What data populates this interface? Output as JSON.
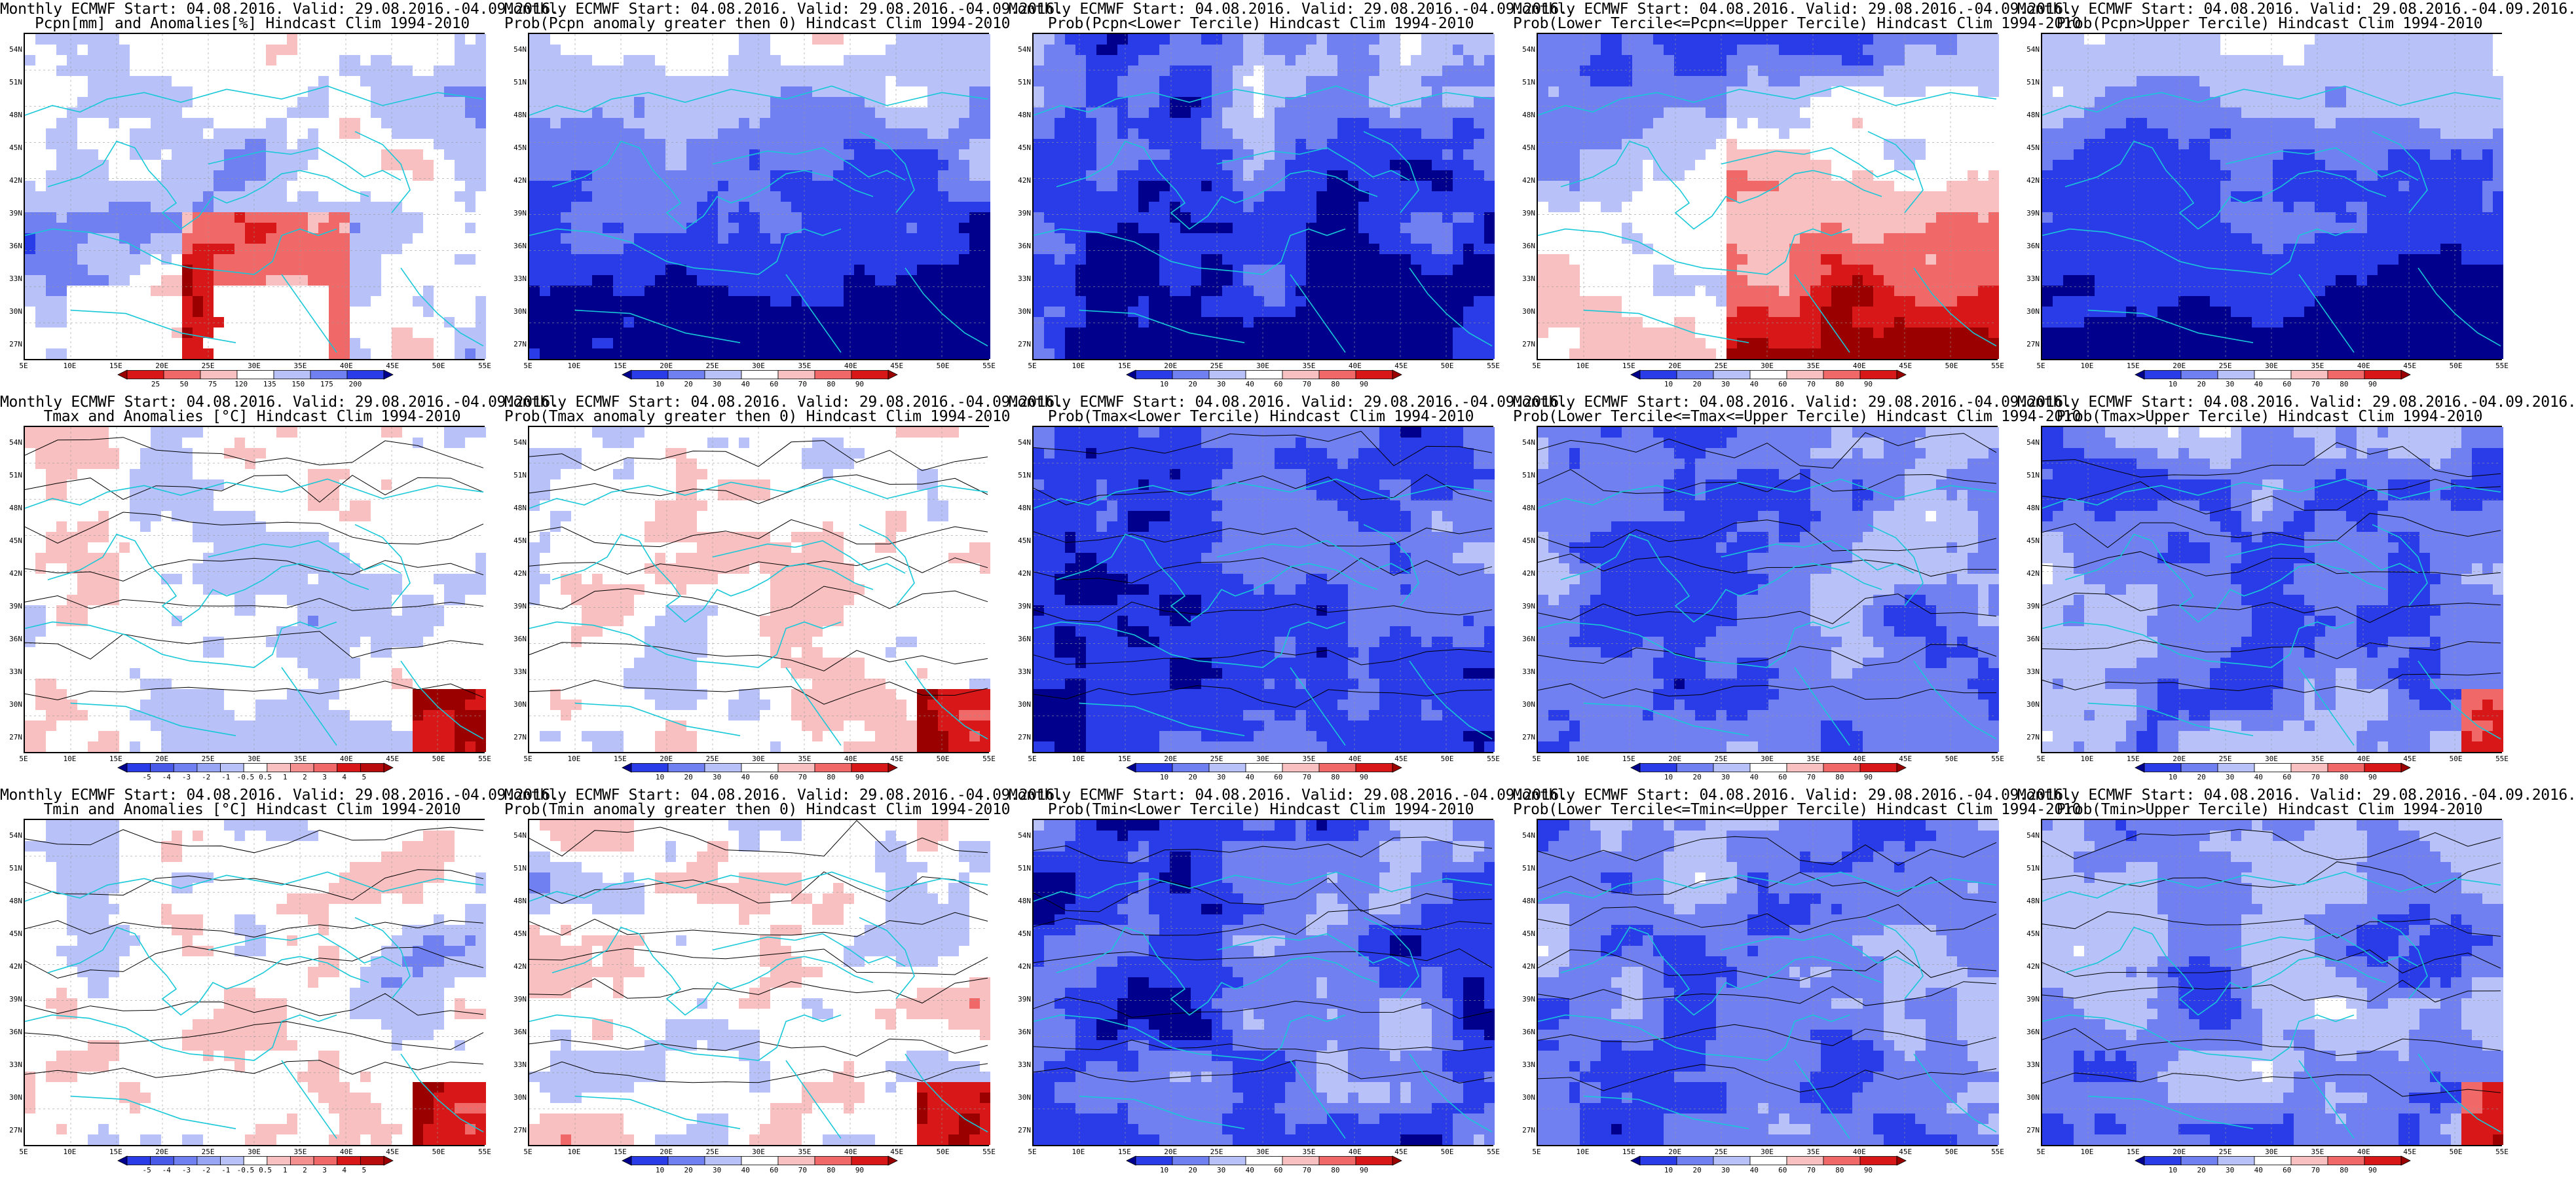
{
  "colors": {
    "deep_blue": "#00008c",
    "blue": "#2a3be8",
    "mid_blue": "#7080f0",
    "light_blue": "#b8c2f8",
    "white": "#ffffff",
    "light_red": "#f8c0c0",
    "mid_red": "#f06868",
    "red": "#d81818",
    "deep_red": "#9a0000",
    "coast": "#18c8d8",
    "contour": "#000000"
  },
  "map": {
    "lat_labels": [
      "54N",
      "51N",
      "48N",
      "45N",
      "42N",
      "39N",
      "36N",
      "33N",
      "30N",
      "27N"
    ],
    "lon_labels": [
      "5E",
      "10E",
      "15E",
      "20E",
      "25E",
      "30E",
      "35E",
      "40E",
      "45E",
      "50E",
      "55E"
    ]
  },
  "colorbars": {
    "pcpn_anom": [
      "25",
      "50",
      "75",
      "120",
      "135",
      "150",
      "175",
      "200"
    ],
    "prob": [
      "10",
      "20",
      "30",
      "40",
      "60",
      "70",
      "80",
      "90"
    ],
    "temp_anom": [
      "-5",
      "-4",
      "-3",
      "-2",
      "-1",
      "-0.5",
      "0.5",
      "1",
      "2",
      "3",
      "4",
      "5"
    ]
  },
  "panels": [
    {
      "line1": "Monthly ECMWF Start: 04.08.2016. Valid: 29.08.2016.-04.09.2016.",
      "line2": "Pcpn[mm] and Anomalies[%] Hindcast Clim 1994-2010",
      "field": "pcpn_anom",
      "cbar": "pcpn_anom"
    },
    {
      "line1": "Monthly ECMWF Start: 04.08.2016. Valid: 29.08.2016.-04.09.2016.",
      "line2": "Prob(Pcpn anomaly greater then 0) Hindcast Clim 1994-2010",
      "field": "pcpn_pos",
      "cbar": "prob"
    },
    {
      "line1": "Monthly ECMWF Start: 04.08.2016. Valid: 29.08.2016.-04.09.2016.",
      "line2": "Prob(Pcpn<Lower Tercile) Hindcast Clim 1994-2010",
      "field": "pcpn_low",
      "cbar": "prob"
    },
    {
      "line1": "Monthly ECMWF Start: 04.08.2016. Valid: 29.08.2016.-04.09.2016.",
      "line2": "Prob(Lower Tercile<=Pcpn<=Upper Tercile) Hindcast Clim 1994-2010",
      "field": "pcpn_mid",
      "cbar": "prob"
    },
    {
      "line1": "Monthly ECMWF Start: 04.08.2016. Valid: 29.08.2016.-04.09.2016.",
      "line2": "Prob(Pcpn>Upper Tercile) Hindcast Clim 1994-2010",
      "field": "pcpn_up",
      "cbar": "prob"
    },
    {
      "line1": "Monthly ECMWF Start: 04.08.2016. Valid: 29.08.2016.-04.09.2016.",
      "line2": "Tmax and Anomalies [°C] Hindcast Clim 1994-2010",
      "field": "t_anom",
      "cbar": "temp_anom"
    },
    {
      "line1": "Monthly ECMWF Start: 04.08.2016. Valid: 29.08.2016.-04.09.2016.",
      "line2": "Prob(Tmax anomaly greater then 0) Hindcast Clim 1994-2010",
      "field": "t_pos",
      "cbar": "prob"
    },
    {
      "line1": "Monthly ECMWF Start: 04.08.2016. Valid: 29.08.2016.-04.09.2016.",
      "line2": "Prob(Tmax<Lower Tercile) Hindcast Clim 1994-2010",
      "field": "t_low",
      "cbar": "prob"
    },
    {
      "line1": "Monthly ECMWF Start: 04.08.2016. Valid: 29.08.2016.-04.09.2016.",
      "line2": "Prob(Lower Tercile<=Tmax<=Upper Tercile) Hindcast Clim 1994-2010",
      "field": "t_mid",
      "cbar": "prob"
    },
    {
      "line1": "Monthly ECMWF Start: 04.08.2016. Valid: 29.08.2016.-04.09.2016.",
      "line2": "Prob(Tmax>Upper Tercile) Hindcast Clim 1994-2010",
      "field": "t_up",
      "cbar": "prob"
    },
    {
      "line1": "Monthly ECMWF Start: 04.08.2016. Valid: 29.08.2016.-04.09.2016.",
      "line2": "Tmin and Anomalies [°C] Hindcast Clim 1994-2010",
      "field": "t_anom",
      "cbar": "temp_anom"
    },
    {
      "line1": "Monthly ECMWF Start: 04.08.2016. Valid: 29.08.2016.-04.09.2016.",
      "line2": "Prob(Tmin anomaly greater then 0) Hindcast Clim 1994-2010",
      "field": "t_pos",
      "cbar": "prob"
    },
    {
      "line1": "Monthly ECMWF Start: 04.08.2016. Valid: 29.08.2016.-04.09.2016.",
      "line2": "Prob(Tmin<Lower Tercile) Hindcast Clim 1994-2010",
      "field": "t_low",
      "cbar": "prob"
    },
    {
      "line1": "Monthly ECMWF Start: 04.08.2016. Valid: 29.08.2016.-04.09.2016.",
      "line2": "Prob(Lower Tercile<=Tmin<=Upper Tercile) Hindcast Clim 1994-2010",
      "field": "t_mid",
      "cbar": "prob"
    },
    {
      "line1": "Monthly ECMWF Start: 04.08.2016. Valid: 29.08.2016.-04.09.2016.",
      "line2": "Prob(Tmin>Upper Tercile) Hindcast Clim 1994-2010",
      "field": "t_up",
      "cbar": "prob"
    }
  ]
}
